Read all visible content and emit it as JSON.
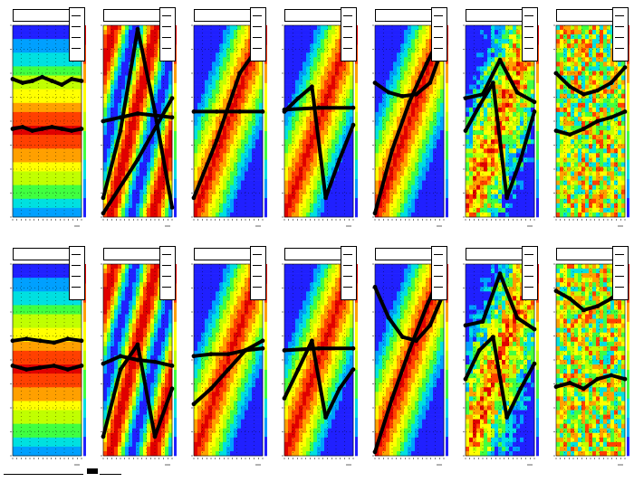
{
  "colors": {
    "background": "#ffffff",
    "markers": "#000000",
    "palette": [
      "#2020ff",
      "#00a0ff",
      "#00e0e0",
      "#40ff40",
      "#c0ff00",
      "#ffff00",
      "#ffa000",
      "#ff4000",
      "#e00000"
    ]
  },
  "chart_data": [
    {
      "type": "heatmap",
      "row": 1,
      "col": 1,
      "pattern": "horizontal",
      "series": [
        {
          "values": [
            0.72,
            0.7,
            0.71,
            0.73,
            0.71,
            0.69,
            0.72,
            0.71
          ]
        },
        {
          "values": [
            0.46,
            0.47,
            0.45,
            0.46,
            0.47,
            0.46,
            0.45,
            0.46
          ]
        }
      ]
    },
    {
      "type": "heatmap",
      "row": 1,
      "col": 2,
      "pattern": "steep-diagonal",
      "series": [
        {
          "values": [
            0.1,
            0.45,
            0.98,
            0.55,
            0.05
          ]
        },
        {
          "values": [
            0.5,
            0.52,
            0.54,
            0.53,
            0.52
          ]
        },
        {
          "values": [
            0.02,
            0.3,
            0.62
          ]
        }
      ]
    },
    {
      "type": "heatmap",
      "row": 1,
      "col": 3,
      "pattern": "diagonal",
      "series": [
        {
          "values": [
            0.1,
            0.4,
            0.75,
            0.92
          ]
        },
        {
          "values": [
            0.55,
            0.55,
            0.55,
            0.55
          ]
        }
      ]
    },
    {
      "type": "heatmap",
      "row": 1,
      "col": 4,
      "pattern": "diagonal",
      "series": [
        {
          "values": [
            0.55,
            0.62,
            0.68,
            0.1,
            0.3,
            0.48
          ]
        },
        {
          "values": [
            0.56,
            0.57,
            0.57
          ]
        }
      ]
    },
    {
      "type": "heatmap",
      "row": 1,
      "col": 5,
      "pattern": "diagonal",
      "series": [
        {
          "values": [
            0.02,
            0.35,
            0.6,
            0.8,
            0.98
          ]
        },
        {
          "values": [
            0.7,
            0.65,
            0.63,
            0.64,
            0.7,
            0.9
          ]
        }
      ]
    },
    {
      "type": "heatmap",
      "row": 1,
      "col": 6,
      "pattern": "noisy-diagonal",
      "series": [
        {
          "values": [
            0.45,
            0.58,
            0.7,
            0.1,
            0.3,
            0.55
          ]
        },
        {
          "values": [
            0.62,
            0.64,
            0.82,
            0.65,
            0.6
          ]
        }
      ]
    },
    {
      "type": "heatmap",
      "row": 1,
      "col": 7,
      "pattern": "noisy-uniform",
      "series": [
        {
          "values": [
            0.75,
            0.68,
            0.64,
            0.66,
            0.7,
            0.78
          ]
        },
        {
          "values": [
            0.45,
            0.43,
            0.46,
            0.5,
            0.52,
            0.55
          ]
        }
      ]
    },
    {
      "type": "heatmap",
      "row": 2,
      "col": 1,
      "pattern": "horizontal",
      "series": [
        {
          "values": [
            0.6,
            0.61,
            0.6,
            0.59,
            0.61,
            0.6
          ]
        },
        {
          "values": [
            0.47,
            0.45,
            0.46,
            0.47,
            0.45,
            0.47
          ]
        }
      ]
    },
    {
      "type": "heatmap",
      "row": 2,
      "col": 2,
      "pattern": "steep-diagonal",
      "series": [
        {
          "values": [
            0.1,
            0.45,
            0.58,
            0.1,
            0.35
          ]
        },
        {
          "values": [
            0.48,
            0.52,
            0.5,
            0.49,
            0.47
          ]
        }
      ]
    },
    {
      "type": "heatmap",
      "row": 2,
      "col": 3,
      "pattern": "diagonal",
      "series": [
        {
          "values": [
            0.27,
            0.35,
            0.45,
            0.55,
            0.6
          ]
        },
        {
          "values": [
            0.52,
            0.53,
            0.53,
            0.55,
            0.56
          ]
        }
      ]
    },
    {
      "type": "heatmap",
      "row": 2,
      "col": 4,
      "pattern": "diagonal",
      "series": [
        {
          "values": [
            0.3,
            0.45,
            0.6,
            0.2,
            0.35,
            0.45
          ]
        },
        {
          "values": [
            0.55,
            0.56,
            0.56
          ]
        }
      ]
    },
    {
      "type": "heatmap",
      "row": 2,
      "col": 5,
      "pattern": "diagonal",
      "series": [
        {
          "values": [
            0.02,
            0.3,
            0.55,
            0.78,
            0.98
          ]
        },
        {
          "values": [
            0.88,
            0.72,
            0.62,
            0.6,
            0.68,
            0.85
          ]
        }
      ]
    },
    {
      "type": "heatmap",
      "row": 2,
      "col": 6,
      "pattern": "noisy-diagonal",
      "series": [
        {
          "values": [
            0.4,
            0.55,
            0.62,
            0.2,
            0.35,
            0.48
          ]
        },
        {
          "values": [
            0.68,
            0.7,
            0.95,
            0.72,
            0.66
          ]
        }
      ]
    },
    {
      "type": "heatmap",
      "row": 2,
      "col": 7,
      "pattern": "noisy-uniform",
      "series": [
        {
          "values": [
            0.86,
            0.82,
            0.76,
            0.78,
            0.82,
            0.88
          ]
        },
        {
          "values": [
            0.36,
            0.38,
            0.35,
            0.4,
            0.42,
            0.4
          ]
        }
      ]
    }
  ]
}
